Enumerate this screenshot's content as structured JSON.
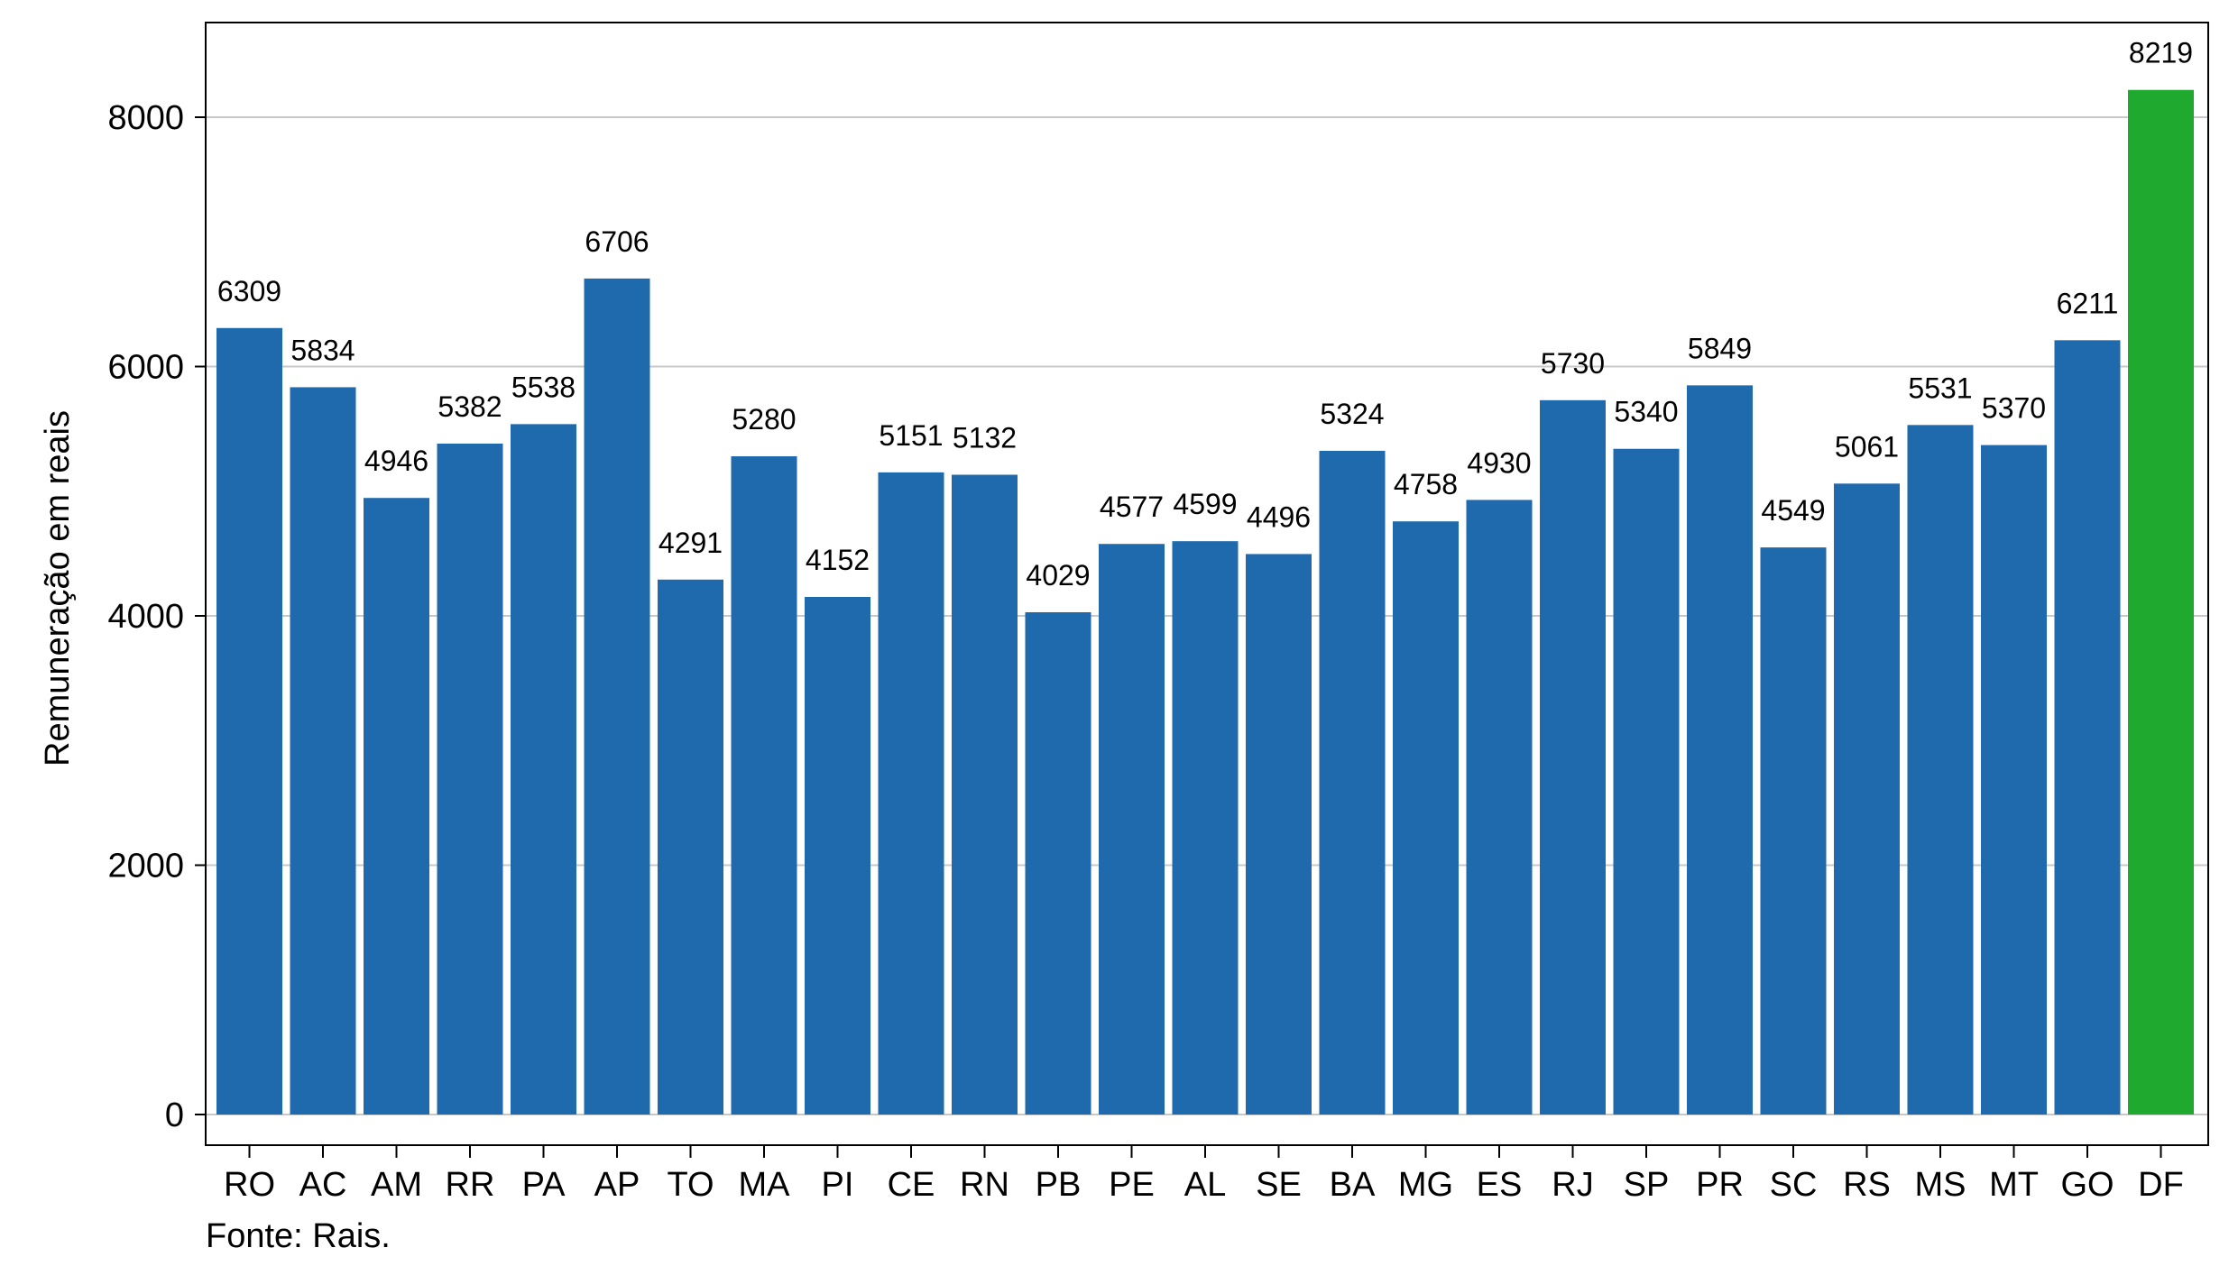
{
  "chart_data": {
    "type": "bar",
    "title": "",
    "xlabel": "",
    "ylabel": "Remuneração em reais",
    "ylim": [
      0,
      8700
    ],
    "yticks": [
      0,
      2000,
      4000,
      6000,
      8000
    ],
    "grid": true,
    "categories": [
      "RO",
      "AC",
      "AM",
      "RR",
      "PA",
      "AP",
      "TO",
      "MA",
      "PI",
      "CE",
      "RN",
      "PB",
      "PE",
      "AL",
      "SE",
      "BA",
      "MG",
      "ES",
      "RJ",
      "SP",
      "PR",
      "SC",
      "RS",
      "MS",
      "MT",
      "GO",
      "DF"
    ],
    "values": [
      6309,
      5834,
      4946,
      5382,
      5538,
      6706,
      4291,
      5280,
      4152,
      5151,
      5132,
      4029,
      4577,
      4599,
      4496,
      5324,
      4758,
      4930,
      5730,
      5340,
      5849,
      4549,
      5061,
      5531,
      5370,
      6211,
      8219
    ],
    "colors": {
      "default": "#1f69ad",
      "highlight": "#1faa2f",
      "highlight_category": "DF",
      "grid": "#c8c8c8"
    }
  },
  "caption": "Fonte: Rais."
}
